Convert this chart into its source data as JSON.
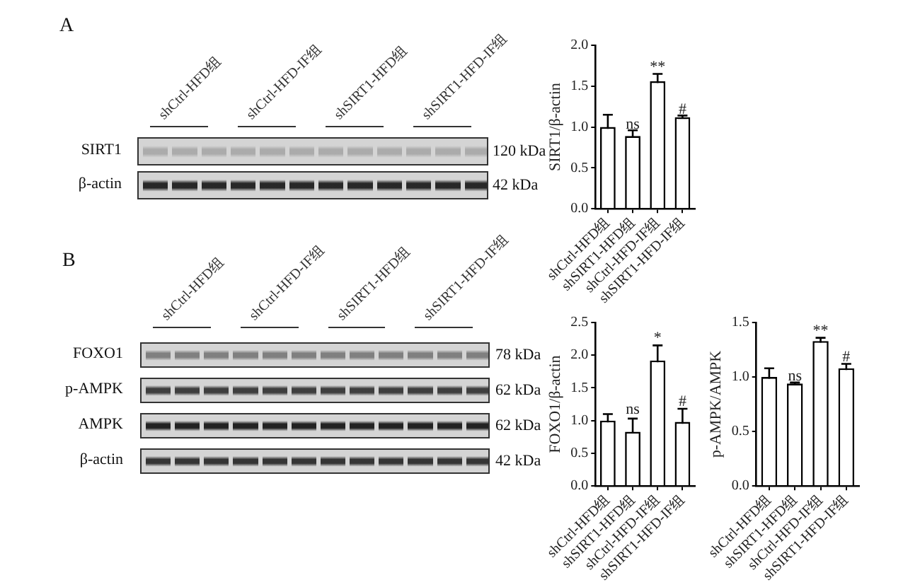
{
  "chart_data": [
    {
      "type": "other",
      "title": "A",
      "categories": [
        "shCtrl-HFD组",
        "shCtrl-HFD-IF组",
        "shSIRT1-HFD组",
        "shSIRT1-HFD-IF组"
      ],
      "y_categories": [
        "SIRT1",
        "β-actin"
      ],
      "y2_categories": [
        "120 kDa",
        "42 kDa"
      ]
    },
    {
      "type": "bar",
      "ylabel": "SIRT1/β-actin",
      "categories": [
        "shCtrl-HFD组",
        "shSIRT1-HFD组",
        "shCtrl-HFD-IF组",
        "shSIRT1-HFD-IF组"
      ],
      "values": [
        1.0,
        0.89,
        1.56,
        1.12
      ],
      "errors": [
        0.15,
        0.07,
        0.09,
        0.02
      ],
      "color": "#ffffff",
      "ylim": [
        0,
        2.0
      ],
      "yticks": [
        {
          "value": 0,
          "label": "0.0"
        },
        {
          "value": 0.5,
          "label": "0.5"
        },
        {
          "value": 1.0,
          "label": "1.0"
        },
        {
          "value": 1.5,
          "label": "1.5"
        },
        {
          "value": 2.0,
          "label": "2.0"
        }
      ],
      "annotations": [
        {
          "text": "ns",
          "x": "shSIRT1-HFD组",
          "y": 0.98
        },
        {
          "text": "**",
          "x": "shCtrl-HFD-IF组",
          "y": 1.68
        },
        {
          "text": "#",
          "x": "shSIRT1-HFD-IF组",
          "y": 1.16
        }
      ]
    },
    {
      "type": "other",
      "title": "B",
      "categories": [
        "shCtrl-HFD组",
        "shCtrl-HFD-IF组",
        "shSIRT1-HFD组",
        "shSIRT1-HFD-IF组"
      ],
      "y_categories": [
        "FOXO1",
        "p-AMPK",
        "AMPK",
        "β-actin"
      ],
      "y2_categories": [
        "78 kDa",
        "62 kDa",
        "62 kDa",
        "42 kDa"
      ]
    },
    {
      "type": "bar",
      "ylabel": "FOXO1/β-actin",
      "categories": [
        "shCtrl-HFD组",
        "shSIRT1-HFD组",
        "shCtrl-HFD-IF组",
        "shSIRT1-HFD-IF组"
      ],
      "values": [
        1.0,
        0.83,
        1.92,
        0.98
      ],
      "errors": [
        0.1,
        0.2,
        0.23,
        0.2
      ],
      "color": "#ffffff",
      "ylim": [
        0,
        2.5
      ],
      "yticks": [
        {
          "value": 0,
          "label": "0.0"
        },
        {
          "value": 0.5,
          "label": "0.5"
        },
        {
          "value": 1.0,
          "label": "1.0"
        },
        {
          "value": 1.5,
          "label": "1.5"
        },
        {
          "value": 2.0,
          "label": "2.0"
        },
        {
          "value": 2.5,
          "label": "2.5"
        }
      ],
      "annotations": [
        {
          "text": "ns",
          "x": "shSIRT1-HFD组",
          "y": 1.1
        },
        {
          "text": "*",
          "x": "shCtrl-HFD-IF组",
          "y": 2.2
        },
        {
          "text": "#",
          "x": "shSIRT1-HFD-IF组",
          "y": 1.22
        }
      ]
    },
    {
      "type": "bar",
      "ylabel": "p-AMPK/AMPK",
      "categories": [
        "shCtrl-HFD组",
        "shSIRT1-HFD组",
        "shCtrl-HFD-IF组",
        "shSIRT1-HFD-IF组"
      ],
      "values": [
        1.0,
        0.94,
        1.33,
        1.08
      ],
      "errors": [
        0.08,
        0.01,
        0.03,
        0.04
      ],
      "color": "#ffffff",
      "ylim": [
        0,
        1.5
      ],
      "yticks": [
        {
          "value": 0,
          "label": "0.0"
        },
        {
          "value": 0.5,
          "label": "0.5"
        },
        {
          "value": 1.0,
          "label": "1.0"
        },
        {
          "value": 1.5,
          "label": "1.5"
        }
      ],
      "annotations": [
        {
          "text": "ns",
          "x": "shSIRT1-HFD组",
          "y": 0.97
        },
        {
          "text": "**",
          "x": "shCtrl-HFD-IF组",
          "y": 1.38
        },
        {
          "text": "#",
          "x": "shSIRT1-HFD-IF组",
          "y": 1.14
        }
      ]
    }
  ]
}
